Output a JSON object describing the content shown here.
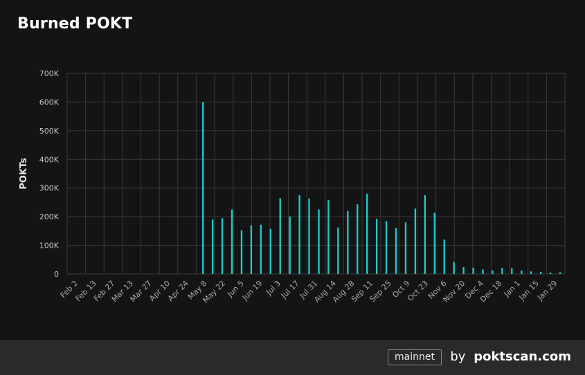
{
  "header": {
    "title": "Burned POKT"
  },
  "footer": {
    "network": "mainnet",
    "by_label": "by",
    "brand": "poktscan.com"
  },
  "colors": {
    "bar": "#1ec8c8",
    "background": "#141414",
    "grid": "#3a3a3a",
    "footer": "#2a2a2a"
  },
  "chart_data": {
    "type": "bar",
    "title": "Burned POKT",
    "xlabel": "",
    "ylabel": "POKTs",
    "ylim": [
      0,
      700000
    ],
    "yticks": [
      0,
      100000,
      200000,
      300000,
      400000,
      500000,
      600000,
      700000
    ],
    "ytick_labels": [
      "0",
      "100K",
      "200K",
      "300K",
      "400K",
      "500K",
      "600K",
      "700K"
    ],
    "grid": true,
    "x_tick_labels": [
      "Feb 2",
      "Feb 13",
      "Feb 27",
      "Mar 13",
      "Mar 27",
      "Apr 10",
      "Apr 24",
      "May 8",
      "May 22",
      "Jun 5",
      "Jun 19",
      "Jul 3",
      "Jul 17",
      "Jul 31",
      "Aug 14",
      "Aug 28",
      "Sep 11",
      "Sep 25",
      "Oct 9",
      "Oct 23",
      "Nov 6",
      "Nov 20",
      "Dec 4",
      "Dec 18",
      "Jan 1",
      "Jan 15",
      "Jan 29"
    ],
    "values": [
      0,
      0,
      0,
      0,
      0,
      0,
      0,
      0,
      0,
      0,
      0,
      0,
      0,
      0,
      0,
      0,
      0,
      0,
      0,
      0,
      0,
      0,
      0,
      0,
      0,
      0,
      0,
      0,
      0,
      0,
      0,
      0,
      0,
      0,
      0,
      0,
      0,
      0,
      0,
      0,
      0,
      0,
      0,
      0,
      0,
      0,
      0,
      0,
      0,
      0,
      0,
      0,
      0,
      0,
      0,
      0,
      0,
      0,
      0,
      0,
      0,
      0,
      0,
      0,
      0,
      0,
      0,
      0,
      0,
      0,
      0,
      0,
      0,
      0,
      0,
      0,
      0,
      0,
      0,
      0,
      0,
      0,
      0,
      0,
      0,
      0,
      0,
      0,
      0,
      0,
      0,
      0,
      0,
      0,
      0,
      0,
      0,
      0,
      600000,
      0,
      0,
      0,
      0,
      0,
      0,
      190000,
      0,
      0,
      0,
      0,
      0,
      0,
      195000,
      0,
      0,
      0,
      0,
      0,
      0,
      225000,
      0,
      0,
      0,
      0,
      0,
      0,
      152000,
      0,
      0,
      0,
      0,
      0,
      0,
      170000,
      0,
      0,
      0,
      0,
      0,
      0,
      172000,
      0,
      0,
      0,
      0,
      0,
      0,
      157000,
      0,
      0,
      0,
      0,
      0,
      0,
      265000,
      0,
      0,
      0,
      0,
      0,
      0,
      200000,
      0,
      0,
      0,
      0,
      0,
      0,
      275000,
      0,
      0,
      0,
      0,
      0,
      0,
      263000,
      0,
      0,
      0,
      0,
      0,
      0,
      225000,
      0,
      0,
      0,
      0,
      0,
      0,
      258000,
      0,
      0,
      0,
      0,
      0,
      0,
      162000,
      0,
      0,
      0,
      0,
      0,
      0,
      220000,
      0,
      0,
      0,
      0,
      0,
      0,
      243000,
      0,
      0,
      0,
      0,
      0,
      0,
      280000,
      0,
      0,
      0,
      0,
      0,
      0,
      192000,
      0,
      0,
      0,
      0,
      0,
      0,
      185000,
      0,
      0,
      0,
      0,
      0,
      0,
      160000,
      0,
      0,
      0,
      0,
      0,
      0,
      180000,
      0,
      0,
      0,
      0,
      0,
      0,
      228000,
      0,
      0,
      0,
      0,
      0,
      0,
      275000,
      0,
      0,
      0,
      0,
      0,
      0,
      213000,
      0,
      0,
      0,
      0,
      0,
      0,
      120000,
      0,
      0,
      0,
      0,
      0,
      0,
      42000,
      0,
      0,
      0,
      0,
      0,
      0,
      24000,
      0,
      0,
      0,
      0,
      0,
      0,
      22000,
      0,
      0,
      0,
      0,
      0,
      0,
      16000,
      0,
      0,
      0,
      0,
      0,
      0,
      12000,
      0,
      0,
      0,
      0,
      0,
      0,
      21000,
      0,
      0,
      0,
      0,
      0,
      0,
      20000,
      0,
      0,
      0,
      0,
      0,
      0,
      12000,
      0,
      0,
      0,
      0,
      0,
      0,
      9000,
      0,
      0,
      0,
      0,
      0,
      0,
      7000,
      0,
      0,
      0,
      0,
      0,
      0,
      5000,
      0,
      0,
      0,
      0,
      0,
      0,
      6000,
      0,
      0,
      0
    ]
  }
}
